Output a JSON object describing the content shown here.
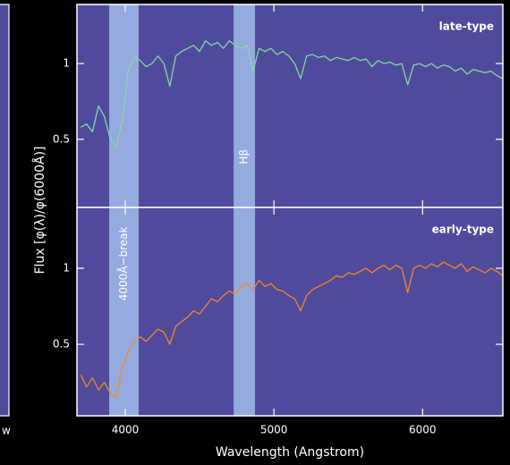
{
  "fragment_label": "w",
  "chart_data": [
    {
      "type": "line",
      "label": "late-type",
      "ylabel": "Flux [φ(λ)/φ(6000Å)]",
      "xlim": [
        3675,
        6540
      ],
      "xticks": [
        4000,
        5000,
        6000
      ],
      "show_xtick_labels": false,
      "ylim": [
        0.05,
        1.39
      ],
      "yticks": [
        0.5,
        1
      ],
      "bands": [
        {
          "xlim": [
            3892,
            4090
          ]
        },
        {
          "xlim": [
            4729,
            4873
          ],
          "label": "Hβ"
        }
      ],
      "x": [
        3700,
        3740,
        3780,
        3820,
        3860,
        3900,
        3940,
        3980,
        4020,
        4060,
        4100,
        4140,
        4180,
        4220,
        4260,
        4300,
        4340,
        4380,
        4420,
        4460,
        4500,
        4540,
        4580,
        4620,
        4660,
        4700,
        4740,
        4780,
        4820,
        4860,
        4900,
        4940,
        4980,
        5020,
        5060,
        5100,
        5140,
        5180,
        5220,
        5260,
        5300,
        5340,
        5380,
        5420,
        5460,
        5500,
        5540,
        5580,
        5620,
        5660,
        5700,
        5740,
        5780,
        5820,
        5860,
        5900,
        5940,
        5980,
        6020,
        6060,
        6100,
        6140,
        6180,
        6220,
        6260,
        6300,
        6340,
        6380,
        6420,
        6460,
        6500,
        6540
      ],
      "series": [
        {
          "name": "late-type",
          "color": "#84d9a4",
          "values": [
            0.58,
            0.6,
            0.55,
            0.72,
            0.65,
            0.5,
            0.45,
            0.62,
            0.95,
            1.05,
            1.02,
            0.98,
            1.0,
            1.05,
            1.0,
            0.85,
            1.05,
            1.08,
            1.1,
            1.12,
            1.08,
            1.15,
            1.12,
            1.14,
            1.1,
            1.15,
            1.12,
            1.1,
            1.12,
            0.95,
            1.1,
            1.08,
            1.1,
            1.06,
            1.08,
            1.05,
            1.0,
            0.9,
            1.05,
            1.06,
            1.04,
            1.05,
            1.02,
            1.04,
            1.03,
            1.02,
            1.04,
            1.02,
            1.03,
            0.98,
            1.02,
            1.0,
            1.01,
            0.99,
            1.0,
            0.86,
            0.99,
            1.0,
            0.98,
            1.0,
            0.97,
            0.99,
            0.98,
            0.95,
            0.97,
            0.93,
            0.96,
            0.95,
            0.94,
            0.95,
            0.92,
            0.9
          ]
        }
      ]
    },
    {
      "type": "line",
      "label": "early-type",
      "xlabel": "Wavelength (Angstrom)",
      "xlim": [
        3675,
        6540
      ],
      "xticks": [
        4000,
        5000,
        6000
      ],
      "show_xtick_labels": true,
      "ylim": [
        0.03,
        1.4
      ],
      "yticks": [
        0.5,
        1
      ],
      "bands": [
        {
          "xlim": [
            3892,
            4090
          ],
          "label": "4000Å−break"
        },
        {
          "xlim": [
            4729,
            4873
          ]
        }
      ],
      "x": [
        3700,
        3740,
        3780,
        3820,
        3860,
        3900,
        3940,
        3980,
        4020,
        4060,
        4100,
        4140,
        4180,
        4220,
        4260,
        4300,
        4340,
        4380,
        4420,
        4460,
        4500,
        4540,
        4580,
        4620,
        4660,
        4700,
        4740,
        4780,
        4820,
        4860,
        4900,
        4940,
        4980,
        5020,
        5060,
        5100,
        5140,
        5180,
        5220,
        5260,
        5300,
        5340,
        5380,
        5420,
        5460,
        5500,
        5540,
        5580,
        5620,
        5660,
        5700,
        5740,
        5780,
        5820,
        5860,
        5900,
        5940,
        5980,
        6020,
        6060,
        6100,
        6140,
        6180,
        6220,
        6260,
        6300,
        6340,
        6380,
        6420,
        6460,
        6500,
        6540
      ],
      "series": [
        {
          "name": "early-type",
          "color": "#f28a26",
          "values": [
            0.3,
            0.22,
            0.28,
            0.2,
            0.25,
            0.18,
            0.15,
            0.35,
            0.45,
            0.52,
            0.55,
            0.52,
            0.56,
            0.6,
            0.58,
            0.5,
            0.62,
            0.65,
            0.68,
            0.72,
            0.7,
            0.75,
            0.8,
            0.78,
            0.82,
            0.85,
            0.83,
            0.88,
            0.9,
            0.86,
            0.92,
            0.88,
            0.9,
            0.86,
            0.85,
            0.82,
            0.8,
            0.72,
            0.82,
            0.86,
            0.88,
            0.9,
            0.92,
            0.95,
            0.94,
            0.97,
            0.96,
            0.98,
            1.0,
            0.97,
            1.0,
            1.02,
            0.99,
            1.02,
            1.0,
            0.84,
            1.0,
            1.02,
            1.0,
            1.03,
            1.01,
            1.04,
            1.02,
            1.0,
            1.03,
            0.98,
            1.01,
            0.99,
            0.97,
            1.0,
            0.98,
            0.95
          ]
        }
      ]
    }
  ]
}
